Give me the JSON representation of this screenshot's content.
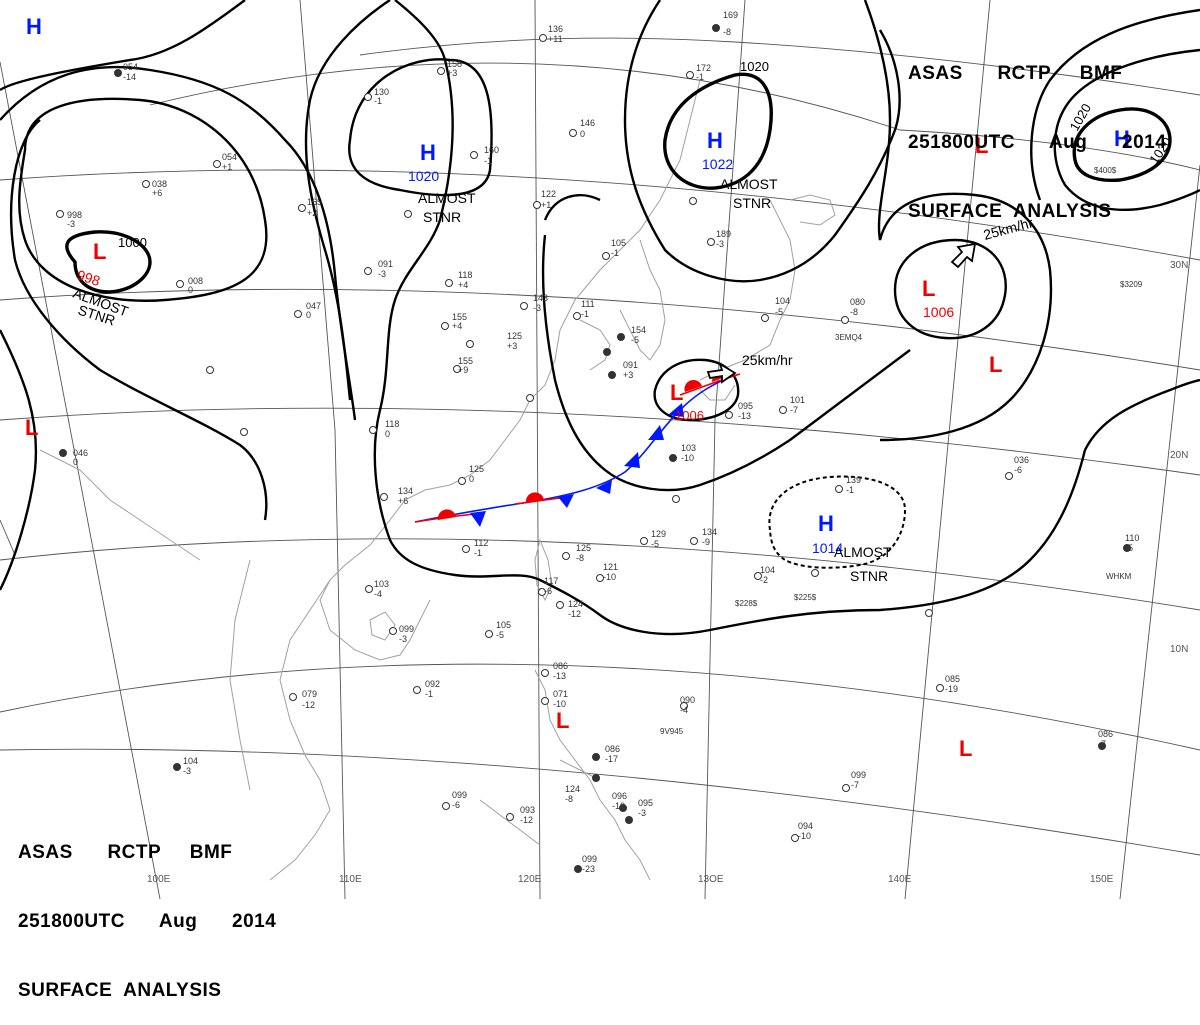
{
  "header": {
    "line1": "ASAS      RCTP     BMF",
    "line2": "251800UTC      Aug      2014",
    "line3": "SURFACE  ANALYSIS"
  },
  "grid": {
    "lon_labels": [
      "110E",
      "120E",
      "13OE",
      "140E",
      "150E",
      "100E"
    ],
    "lat_labels": [
      "30N",
      "20N",
      "10N"
    ]
  },
  "centers": {
    "high_nw": {
      "symbol": "H"
    },
    "high_china": {
      "symbol": "H",
      "pressure": "1020",
      "status_1": "ALMOST",
      "status_2": "STNR"
    },
    "high_korea": {
      "symbol": "H",
      "pressure": "1022",
      "status_1": "ALMOST",
      "status_2": "STNR"
    },
    "high_ne": {
      "symbol": "H"
    },
    "high_pacific": {
      "symbol": "H",
      "pressure": "1014",
      "status_1": "ALMOST",
      "status_2": "STNR"
    },
    "low_tibet": {
      "symbol": "L",
      "pressure": "998",
      "status_1": "ALMOST",
      "status_2": "STNR"
    },
    "low_west": {
      "symbol": "L"
    },
    "low_japan": {
      "symbol": "L",
      "pressure": "1006",
      "motion": "25km/hr"
    },
    "low_pacific": {
      "symbol": "L",
      "pressure": "1006",
      "motion": "25km/hr"
    },
    "low_ne_a": {
      "symbol": "L"
    },
    "low_ne_b": {
      "symbol": "L"
    },
    "low_philippines": {
      "symbol": "L"
    },
    "low_se": {
      "symbol": "L"
    }
  },
  "isobars": {
    "label_1000": "1000",
    "label_1020_a": "1020",
    "label_1020_b": "1020",
    "label_1020_c": "1020"
  },
  "colors": {
    "high": "#0018ff",
    "low": "#ee0000",
    "isobar": "#000000",
    "coast": "#999999",
    "warm_front": "#ee0000",
    "cold_front": "#0018ff"
  },
  "stations": [
    {
      "id": "s1",
      "t": "136",
      "p": "+11"
    },
    {
      "id": "s2",
      "t": "169",
      "p": "-8"
    },
    {
      "id": "s3",
      "t": "054",
      "p": "-14"
    },
    {
      "id": "s4",
      "t": "158",
      "p": "+3"
    },
    {
      "id": "s5",
      "t": "130",
      "p": "-1"
    },
    {
      "id": "s6",
      "t": "172",
      "p": "-1"
    },
    {
      "id": "s7",
      "t": "146",
      "p": "0"
    },
    {
      "id": "s8",
      "t": "160",
      "p": "-1"
    },
    {
      "id": "s9",
      "t": "054",
      "p": "+1"
    },
    {
      "id": "s10",
      "t": "038",
      "p": "+6"
    },
    {
      "id": "s11",
      "t": "165",
      "p": "+2"
    },
    {
      "id": "s12",
      "t": "122",
      "p": "+1"
    },
    {
      "id": "s13",
      "t": "189",
      "p": "-3"
    },
    {
      "id": "s14",
      "t": "998",
      "p": "-3"
    },
    {
      "id": "s15",
      "t": "091",
      "p": "-3"
    },
    {
      "id": "s16",
      "t": "118",
      "p": "+4"
    },
    {
      "id": "s17",
      "t": "105",
      "p": "-1"
    },
    {
      "id": "s18",
      "t": "008",
      "p": "0"
    },
    {
      "id": "s19",
      "t": "047",
      "p": "0"
    },
    {
      "id": "s20",
      "t": "143",
      "p": "-3"
    },
    {
      "id": "s21",
      "t": "111",
      "p": "-1"
    },
    {
      "id": "s22",
      "t": "155",
      "p": "+4"
    },
    {
      "id": "s23",
      "t": "125",
      "p": "+3"
    },
    {
      "id": "s24",
      "t": "104",
      "p": "-5"
    },
    {
      "id": "s25",
      "t": "080",
      "p": "-8"
    },
    {
      "id": "s26",
      "t": "154",
      "p": "-5"
    },
    {
      "id": "s27",
      "t": "155",
      "p": "+9"
    },
    {
      "id": "s28",
      "t": "091",
      "p": "+3"
    },
    {
      "id": "s29",
      "t": "095",
      "p": "-13"
    },
    {
      "id": "s30",
      "t": "101",
      "p": "-7"
    },
    {
      "id": "s31",
      "t": "046",
      "p": "0"
    },
    {
      "id": "s32",
      "t": "118",
      "p": "0"
    },
    {
      "id": "s33",
      "t": "125",
      "p": "0"
    },
    {
      "id": "s34",
      "t": "103",
      "p": "-10"
    },
    {
      "id": "s35",
      "t": "036",
      "p": "-6"
    },
    {
      "id": "s36",
      "t": "134",
      "p": "+6"
    },
    {
      "id": "s37",
      "t": "139",
      "p": "-1"
    },
    {
      "id": "s38",
      "t": "112",
      "p": "-1"
    },
    {
      "id": "s39",
      "t": "125",
      "p": "-8"
    },
    {
      "id": "s40",
      "t": "129",
      "p": "-5"
    },
    {
      "id": "s41",
      "t": "134",
      "p": "-9"
    },
    {
      "id": "s42",
      "t": "110",
      "p": "-5"
    },
    {
      "id": "s43",
      "t": "103",
      "p": "-4"
    },
    {
      "id": "s44",
      "t": "121",
      "p": "-10"
    },
    {
      "id": "s45",
      "t": "117",
      "p": "-6"
    },
    {
      "id": "s46",
      "t": "124",
      "p": "-12"
    },
    {
      "id": "s47",
      "t": "104",
      "p": "-2"
    },
    {
      "id": "s48",
      "t": "099",
      "p": "-3"
    },
    {
      "id": "s49",
      "t": "105",
      "p": "-5"
    },
    {
      "id": "s50",
      "t": "079",
      "p": "-12"
    },
    {
      "id": "s51",
      "t": "092",
      "p": "-1"
    },
    {
      "id": "s52",
      "t": "086",
      "p": "-13"
    },
    {
      "id": "s53",
      "t": "071",
      "p": "-10"
    },
    {
      "id": "s54",
      "t": "090",
      "p": "-4"
    },
    {
      "id": "s55",
      "t": "085",
      "p": "-19"
    },
    {
      "id": "s56",
      "t": "086",
      "p": "-17"
    },
    {
      "id": "s57",
      "t": "104",
      "p": "-3"
    },
    {
      "id": "s58",
      "t": "099",
      "p": "-6"
    },
    {
      "id": "s59",
      "t": "093",
      "p": "-12"
    },
    {
      "id": "s60",
      "t": "124",
      "p": "-8"
    },
    {
      "id": "s61",
      "t": "096",
      "p": "-10"
    },
    {
      "id": "s62",
      "t": "095",
      "p": "-3"
    },
    {
      "id": "s63",
      "t": "099",
      "p": "-23"
    },
    {
      "id": "s64",
      "t": "094",
      "p": "-10"
    },
    {
      "id": "s65",
      "t": "099",
      "p": "-7"
    },
    {
      "id": "s66",
      "t": "086",
      "p": "-7"
    }
  ],
  "ship_ids": [
    "3EMQ4",
    "$3209",
    "$228$",
    "$225$",
    "WHKM",
    "9V945",
    "$400$"
  ]
}
